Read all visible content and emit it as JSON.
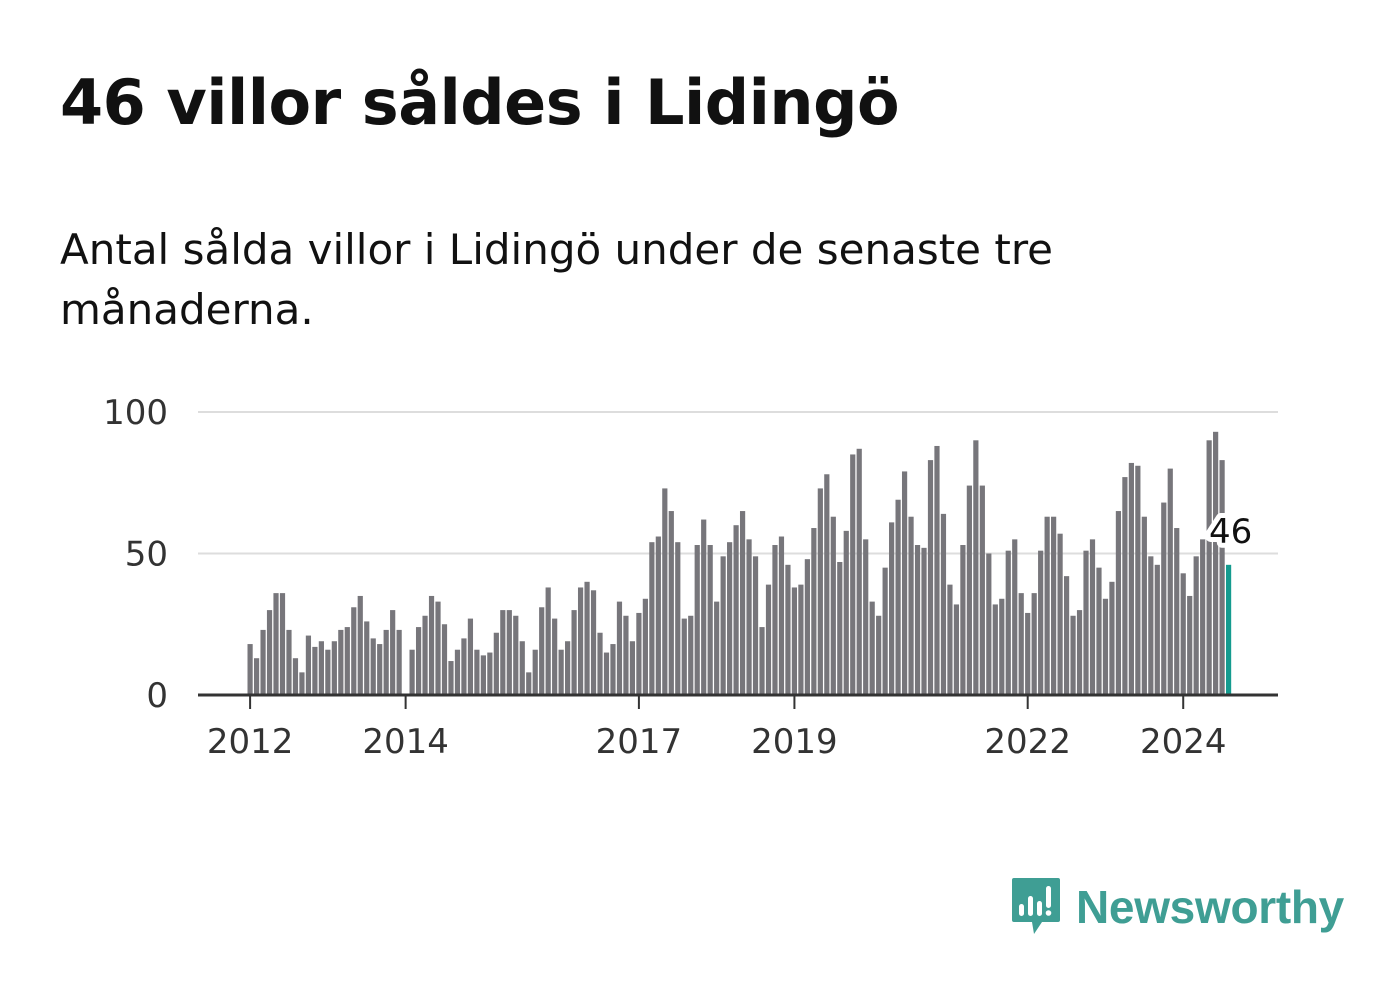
{
  "chart_data": {
    "type": "bar",
    "title": "46 villor såldes i Lidingö",
    "subtitle": "Antal sålda villor i Lidingö under de senaste tre månaderna.",
    "ylim": [
      0,
      100
    ],
    "yticks": [
      0,
      50,
      100
    ],
    "ytick_labels": [
      "0",
      "50",
      "100"
    ],
    "x_start": {
      "year": 2012,
      "month": 1
    },
    "xtick_labels": [
      "2012",
      "2014",
      "2017",
      "2019",
      "2022",
      "2024"
    ],
    "xtick_years": [
      2012,
      2014,
      2017,
      2019,
      2022,
      2024
    ],
    "grid": true,
    "values": [
      18,
      13,
      23,
      30,
      36,
      36,
      23,
      13,
      8,
      21,
      17,
      19,
      16,
      19,
      23,
      24,
      31,
      35,
      26,
      20,
      18,
      23,
      30,
      23,
      0,
      16,
      24,
      28,
      35,
      33,
      25,
      12,
      16,
      20,
      27,
      16,
      14,
      15,
      22,
      30,
      30,
      28,
      19,
      8,
      16,
      31,
      38,
      27,
      16,
      19,
      30,
      38,
      40,
      37,
      22,
      15,
      18,
      33,
      28,
      19,
      29,
      34,
      54,
      56,
      73,
      65,
      54,
      27,
      28,
      53,
      62,
      53,
      33,
      49,
      54,
      60,
      65,
      55,
      49,
      24,
      39,
      53,
      56,
      46,
      38,
      39,
      48,
      59,
      73,
      78,
      63,
      47,
      58,
      85,
      87,
      55,
      33,
      28,
      45,
      61,
      69,
      79,
      63,
      53,
      52,
      83,
      88,
      64,
      39,
      32,
      53,
      74,
      90,
      74,
      50,
      32,
      34,
      51,
      55,
      36,
      29,
      36,
      51,
      63,
      63,
      57,
      42,
      28,
      30,
      51,
      55,
      45,
      34,
      40,
      65,
      77,
      82,
      81,
      63,
      49,
      46,
      68,
      80,
      59,
      43,
      35,
      49,
      55,
      90,
      93,
      83,
      46
    ],
    "highlight": {
      "index": 151,
      "label": "46",
      "color": "#149b8f"
    },
    "bar_color": "#77767b"
  },
  "brand": {
    "name": "Newsworthy",
    "color": "#3f9e94"
  }
}
